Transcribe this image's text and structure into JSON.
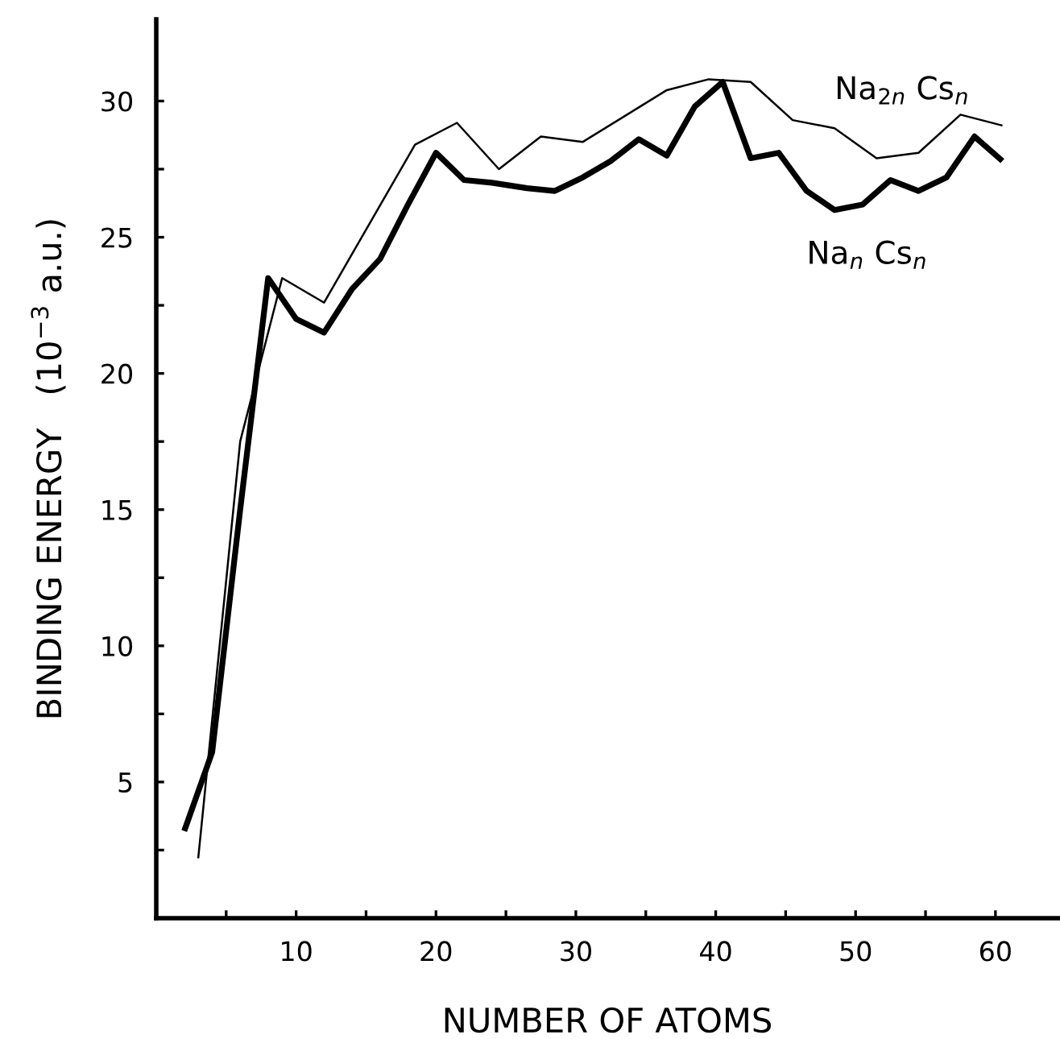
{
  "chart_data": {
    "type": "line",
    "xlabel": "NUMBER OF ATOMS",
    "ylabel": "BINDING ENERGY   (10$^{−3}$ a.u.)",
    "series": [
      {
        "name": "Na$_{2n}$ Cs$_{n}$",
        "color": "#000000",
        "x": [
          3,
          6,
          9,
          12,
          18.5,
          21.5,
          24.5,
          27.5,
          30.5,
          36.5,
          39.5,
          42.5,
          45.5,
          48.5,
          51.5,
          54.5,
          57.5,
          60.5
        ],
        "values": [
          2.2,
          17.5,
          23.5,
          22.6,
          28.4,
          29.2,
          27.5,
          28.7,
          28.5,
          30.4,
          30.8,
          30.7,
          29.3,
          29.0,
          27.9,
          28.1,
          29.5,
          29.1
        ]
      },
      {
        "name": "Na$_{n}$ Cs$_{n}$",
        "color": "#000000",
        "x": [
          2,
          4,
          6,
          8,
          10,
          12,
          14,
          16,
          18,
          20,
          22,
          24,
          26.5,
          28.5,
          30.5,
          32.5,
          34.5,
          36.5,
          38.5,
          40.5,
          42.5,
          44.5,
          46.5,
          48.5,
          50.5,
          52.5,
          54.5,
          56.5,
          58.5,
          60.5
        ],
        "values": [
          3.2,
          6.1,
          15.0,
          23.5,
          22.0,
          21.5,
          23.1,
          24.2,
          26.2,
          28.1,
          27.1,
          27.0,
          26.8,
          26.7,
          27.2,
          27.8,
          28.6,
          28.0,
          29.8,
          30.7,
          27.9,
          28.1,
          26.7,
          26.0,
          26.2,
          27.1,
          26.7,
          27.2,
          28.7,
          27.8
        ]
      }
    ],
    "xlim": [
      0,
      64.5
    ],
    "ylim": [
      0,
      33
    ],
    "xticks": [
      {
        "value": 5,
        "label": null
      },
      10,
      {
        "value": 15,
        "label": null
      },
      20,
      {
        "value": 25,
        "label": null
      },
      30,
      {
        "value": 35,
        "label": null
      },
      40,
      {
        "value": 45,
        "label": null
      },
      50,
      {
        "value": 55,
        "label": null
      },
      60
    ],
    "yticks": [
      {
        "value": 2.5,
        "label": null
      },
      5,
      {
        "value": 7.5,
        "label": null
      },
      10,
      {
        "value": 12.5,
        "label": null
      },
      15,
      {
        "value": 17.5,
        "label": null
      },
      20,
      {
        "value": 22.5,
        "label": null
      },
      25,
      {
        "value": 27.5,
        "label": null
      },
      30
    ],
    "grid": false,
    "legend": false,
    "marker": "none",
    "line_style": "solid"
  }
}
